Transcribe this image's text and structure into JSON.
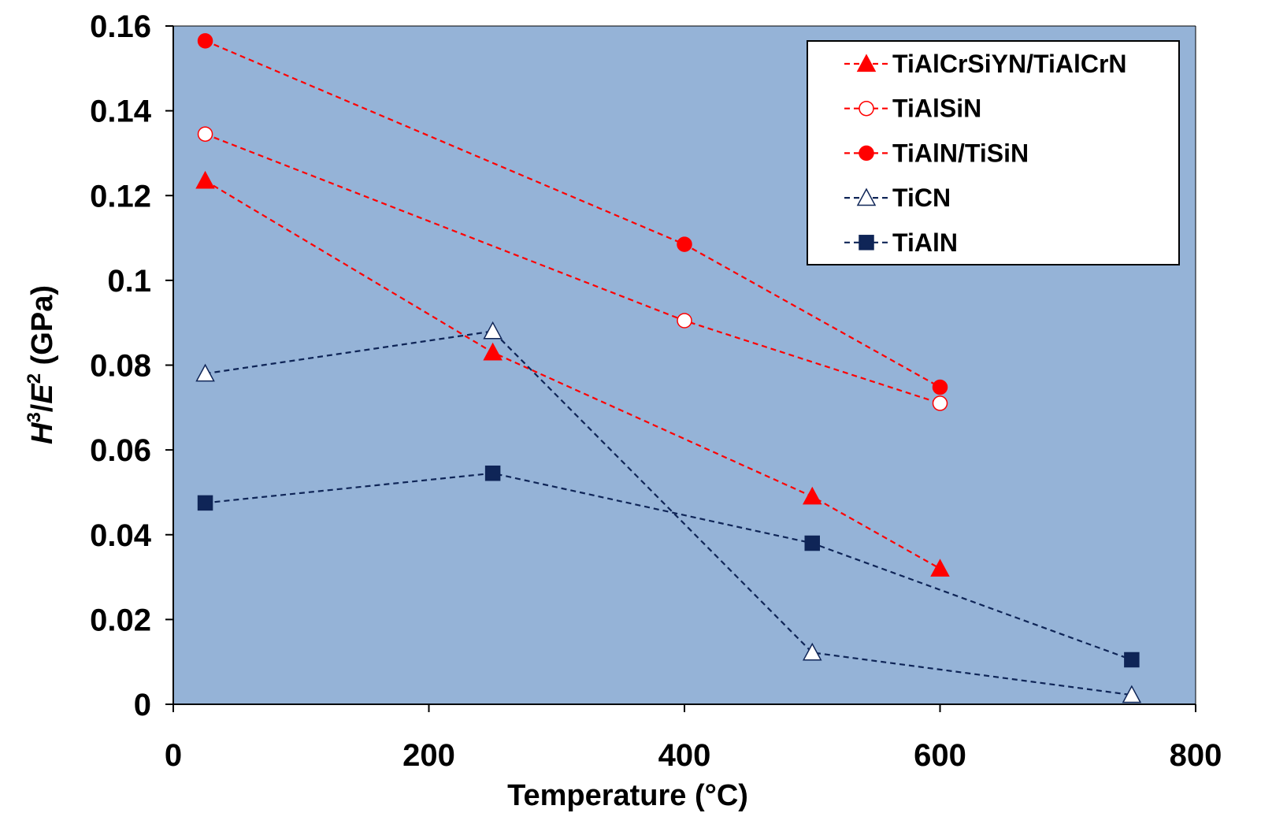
{
  "chart_data": {
    "type": "line",
    "xlabel": "Temperature (°C)",
    "ylabel": {
      "H": "H",
      "sup1": "3",
      "slash": "/",
      "E": "E",
      "sup2": "2",
      "unit": " (GPa)"
    },
    "xlim": [
      0,
      800
    ],
    "ylim": [
      0,
      0.16
    ],
    "x_ticks": [
      "0",
      "200",
      "400",
      "600",
      "800"
    ],
    "y_ticks": [
      "0",
      "0.02",
      "0.04",
      "0.06",
      "0.08",
      "0.1",
      "0.12",
      "0.14",
      "0.16"
    ],
    "grid": false,
    "legend_position": "top-right",
    "plot_background": "#95b3d7",
    "series": [
      {
        "name": "TiAlCrSiYN/TiAlCrN",
        "marker": "triangle-filled",
        "color": "#ff0000",
        "points": [
          [
            25,
            0.1235
          ],
          [
            250,
            0.083
          ],
          [
            500,
            0.049
          ],
          [
            600,
            0.032
          ]
        ]
      },
      {
        "name": "TiAlSiN",
        "marker": "circle-open",
        "color": "#ff0000",
        "points": [
          [
            25,
            0.1345
          ],
          [
            400,
            0.0905
          ],
          [
            600,
            0.071
          ]
        ]
      },
      {
        "name": "TiAlN/TiSiN",
        "marker": "circle-filled",
        "color": "#ff0000",
        "points": [
          [
            25,
            0.1565
          ],
          [
            400,
            0.1085
          ],
          [
            600,
            0.0748
          ]
        ]
      },
      {
        "name": "TiCN",
        "marker": "triangle-open",
        "color": "#0f2557",
        "points": [
          [
            25,
            0.078
          ],
          [
            250,
            0.088
          ],
          [
            500,
            0.0122
          ],
          [
            750,
            0.0022
          ]
        ]
      },
      {
        "name": "TiAlN",
        "marker": "square-filled",
        "color": "#0f2557",
        "points": [
          [
            25,
            0.0475
          ],
          [
            250,
            0.0545
          ],
          [
            500,
            0.038
          ],
          [
            750,
            0.0105
          ]
        ]
      }
    ]
  }
}
